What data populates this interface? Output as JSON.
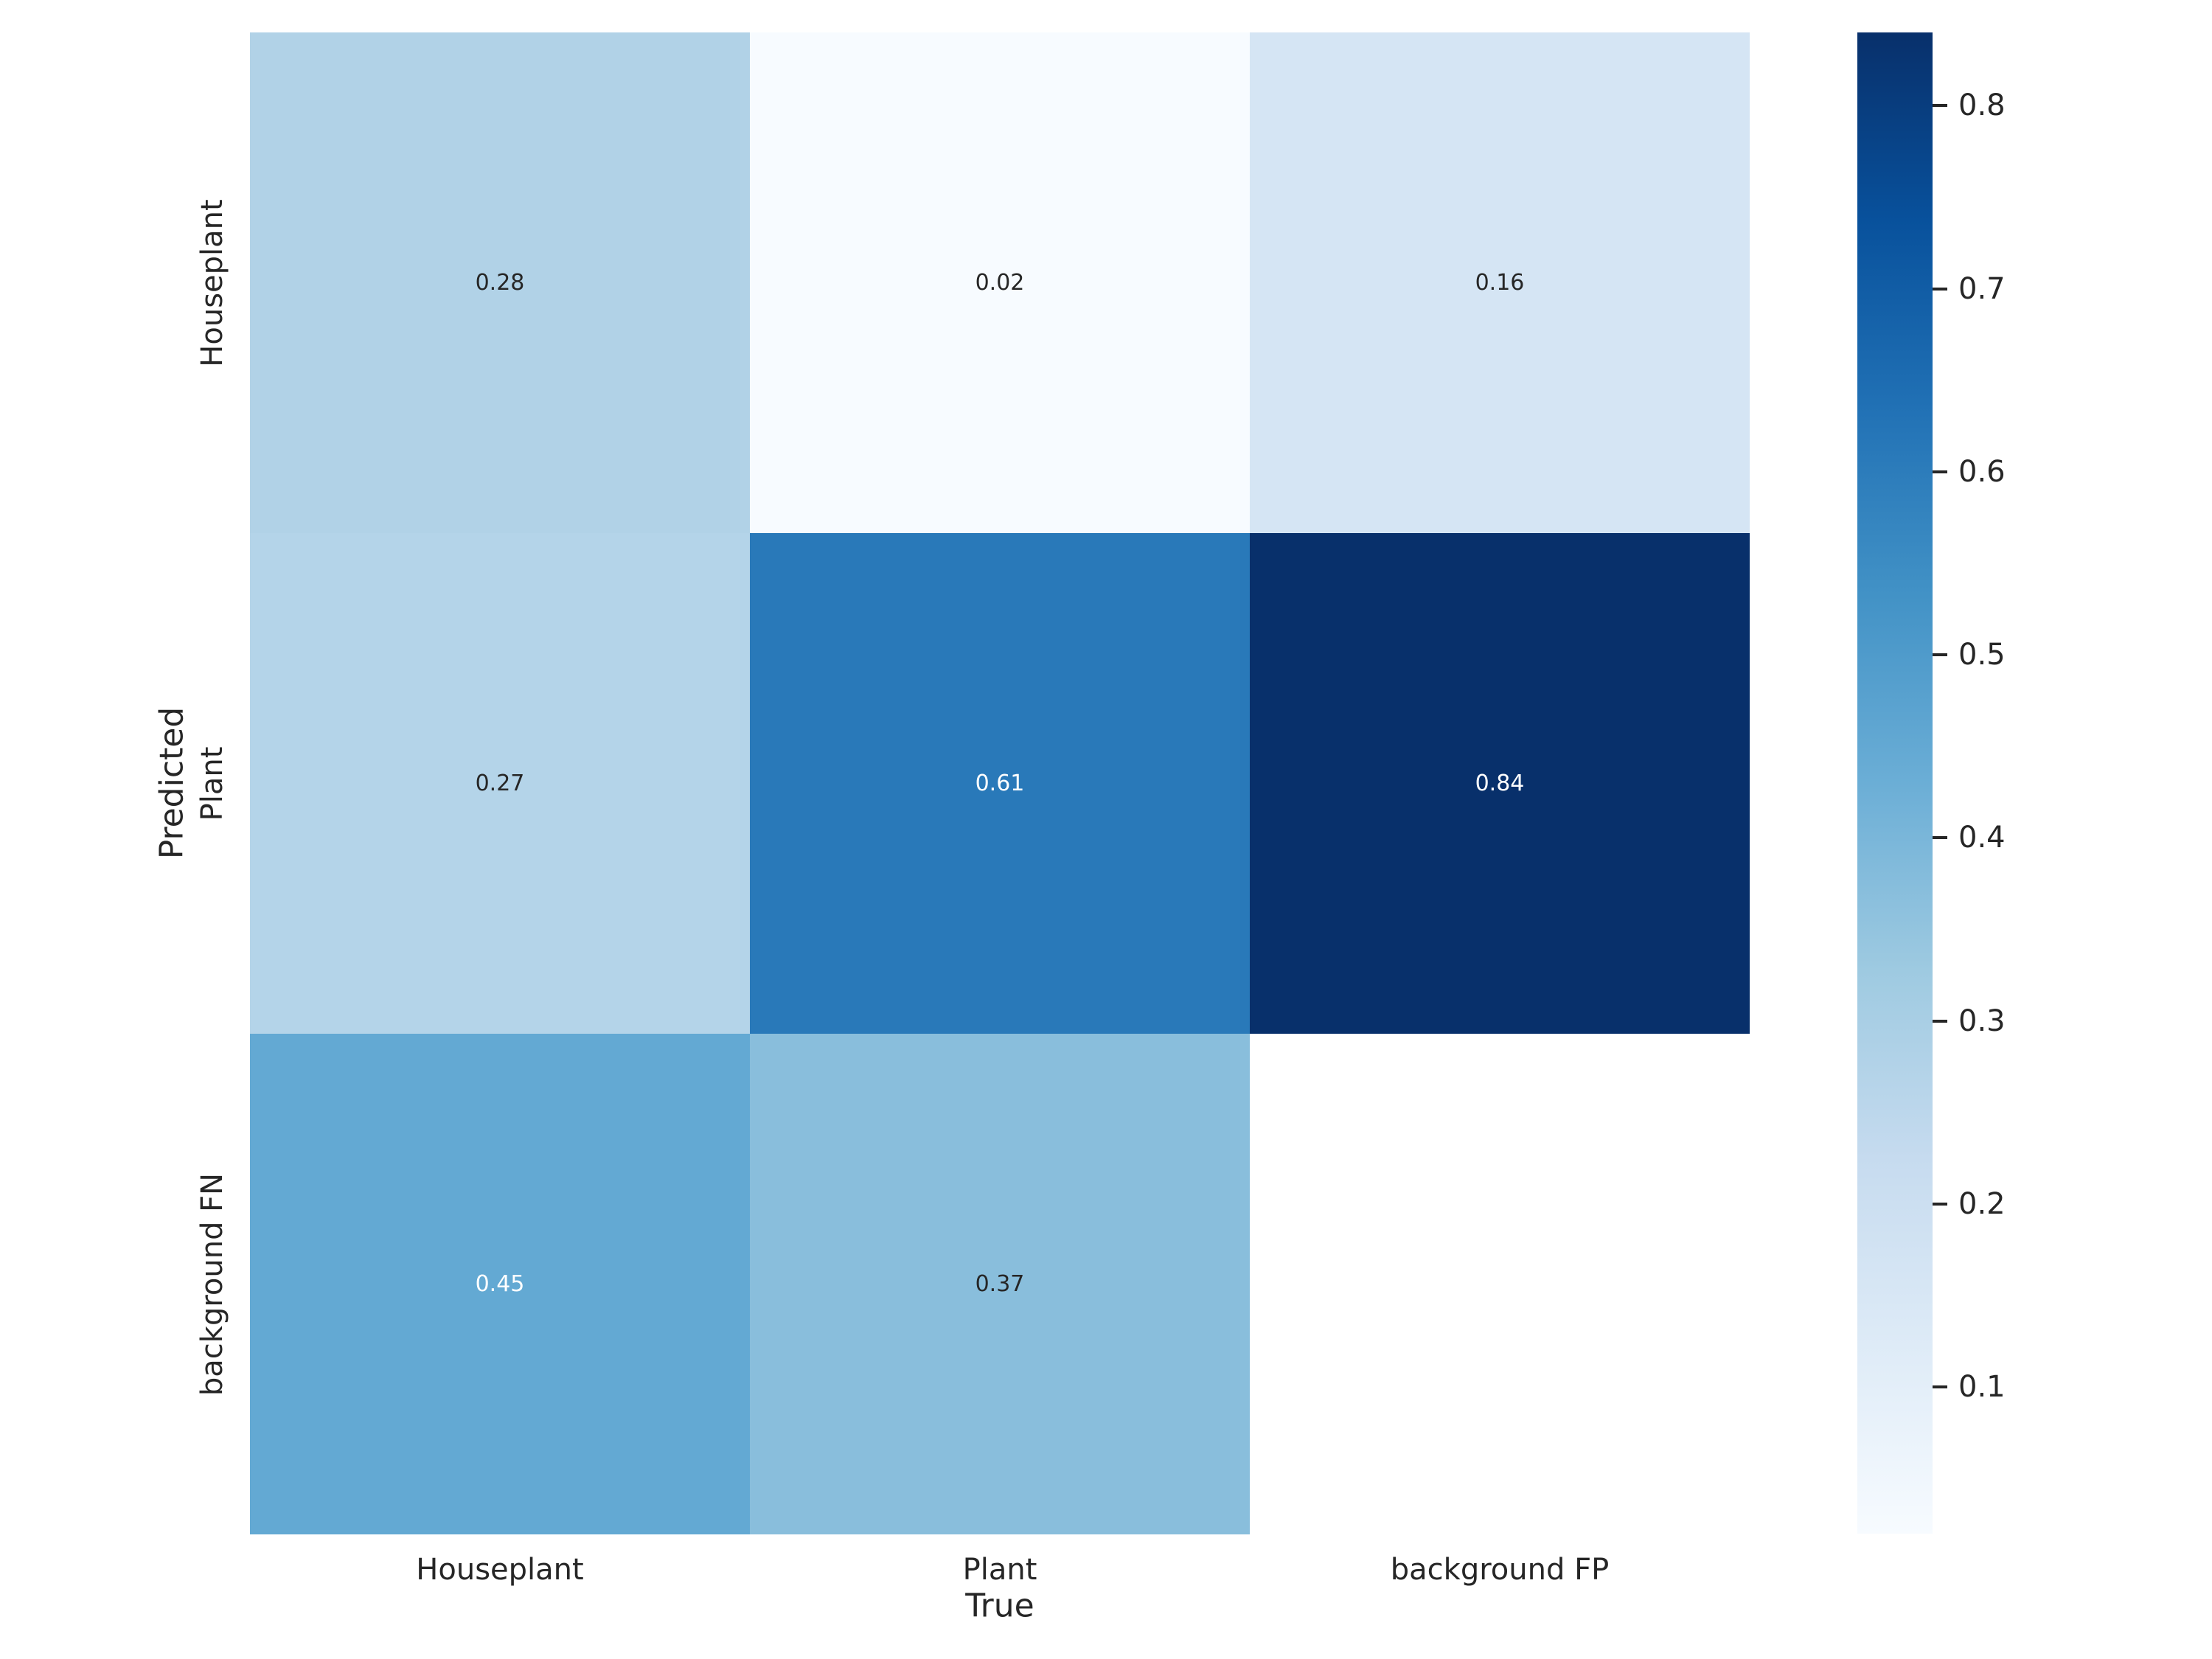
{
  "figure": {
    "background_color": "#ffffff"
  },
  "chart_data": {
    "type": "heatmap",
    "title": "",
    "xlabel": "True",
    "ylabel": "Predicted",
    "x_categories": [
      "Houseplant",
      "Plant",
      "background FP"
    ],
    "y_categories": [
      "Houseplant",
      "Plant",
      "background FN"
    ],
    "values": [
      [
        0.28,
        0.02,
        0.16
      ],
      [
        0.27,
        0.61,
        0.84
      ],
      [
        0.45,
        0.37,
        null
      ]
    ],
    "value_format_decimals": 2,
    "vmin": 0.02,
    "vmax": 0.84,
    "colormap": "Blues",
    "colormap_stops": [
      "#f7fbff",
      "#deebf7",
      "#c6dbef",
      "#9ecae1",
      "#6baed6",
      "#4292c6",
      "#2171b5",
      "#08519c",
      "#08306b"
    ],
    "colorbar_ticks": [
      0.1,
      0.2,
      0.3,
      0.4,
      0.5,
      0.6,
      0.7,
      0.8
    ],
    "colorbar_position": "right",
    "grid": false,
    "empty_cell_color": "#ffffff",
    "annot_dark_color": "#262626",
    "annot_light_color": "#ffffff",
    "tick_color": "#262626"
  }
}
